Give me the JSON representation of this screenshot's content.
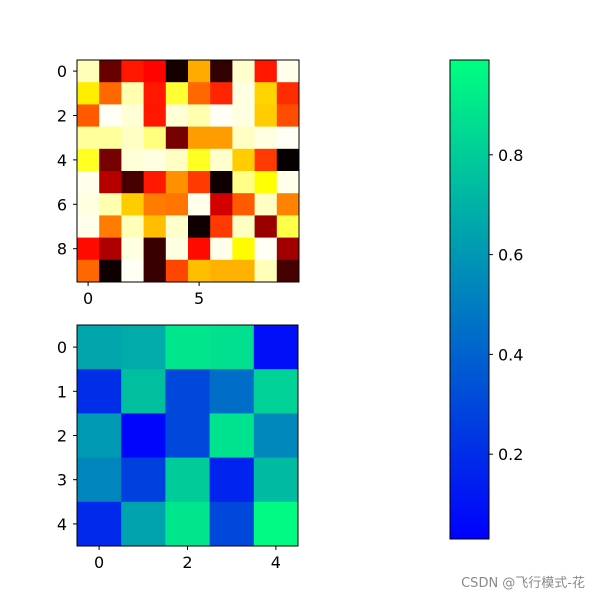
{
  "chart_data": [
    {
      "type": "heatmap",
      "colormap": "hot",
      "rows": 10,
      "cols": 10,
      "xticks": [
        "0",
        "5"
      ],
      "xtick_values": [
        0,
        5
      ],
      "yticks": [
        "0",
        "2",
        "4",
        "6",
        "8"
      ],
      "ytick_values": [
        0,
        2,
        4,
        6,
        8
      ],
      "values": [
        [
          0.93,
          0.15,
          0.4,
          0.37,
          0.03,
          0.62,
          0.07,
          0.95,
          0.4,
          0.98
        ],
        [
          0.72,
          0.52,
          0.92,
          0.4,
          0.8,
          0.52,
          0.42,
          0.97,
          0.68,
          0.43
        ],
        [
          0.5,
          0.99,
          0.96,
          0.4,
          0.96,
          0.92,
          0.99,
          0.97,
          0.67,
          0.48
        ],
        [
          0.9,
          0.9,
          0.94,
          0.87,
          0.17,
          0.6,
          0.6,
          0.94,
          0.97,
          0.99
        ],
        [
          0.78,
          0.17,
          0.96,
          0.97,
          0.94,
          0.78,
          0.95,
          0.67,
          0.45,
          0.01
        ],
        [
          0.98,
          0.26,
          0.1,
          0.4,
          0.58,
          0.45,
          0.02,
          0.88,
          0.75,
          0.98
        ],
        [
          0.97,
          0.92,
          0.67,
          0.55,
          0.54,
          0.98,
          0.3,
          0.5,
          0.94,
          0.56
        ],
        [
          0.98,
          0.55,
          0.93,
          0.65,
          0.95,
          0.02,
          0.45,
          0.94,
          0.22,
          0.82
        ],
        [
          0.38,
          0.25,
          0.97,
          0.08,
          0.97,
          0.38,
          0.98,
          0.74,
          0.99,
          0.23
        ],
        [
          0.52,
          0.02,
          0.99,
          0.08,
          0.47,
          0.65,
          0.63,
          0.63,
          0.93,
          0.1
        ]
      ]
    },
    {
      "type": "heatmap",
      "colormap": "winter",
      "rows": 5,
      "cols": 5,
      "xticks": [
        "0",
        "2",
        "4"
      ],
      "xtick_values": [
        0,
        2,
        4
      ],
      "yticks": [
        "0",
        "1",
        "2",
        "3",
        "4"
      ],
      "ytick_values": [
        0,
        1,
        2,
        3,
        4
      ],
      "values": [
        [
          0.65,
          0.67,
          0.9,
          0.88,
          0.06
        ],
        [
          0.18,
          0.75,
          0.28,
          0.43,
          0.82
        ],
        [
          0.6,
          0.02,
          0.28,
          0.89,
          0.53
        ],
        [
          0.52,
          0.25,
          0.8,
          0.14,
          0.73
        ],
        [
          0.16,
          0.64,
          0.9,
          0.28,
          0.98
        ]
      ]
    }
  ],
  "colorbar": {
    "colormap": "winter",
    "vmin": 0.03,
    "vmax": 0.99,
    "ticks": [
      {
        "value": 0.2,
        "label": "0.2"
      },
      {
        "value": 0.4,
        "label": "0.4"
      },
      {
        "value": 0.6,
        "label": "0.6"
      },
      {
        "value": 0.8,
        "label": "0.8"
      }
    ]
  },
  "watermark": "CSDN @飞行模式-花"
}
